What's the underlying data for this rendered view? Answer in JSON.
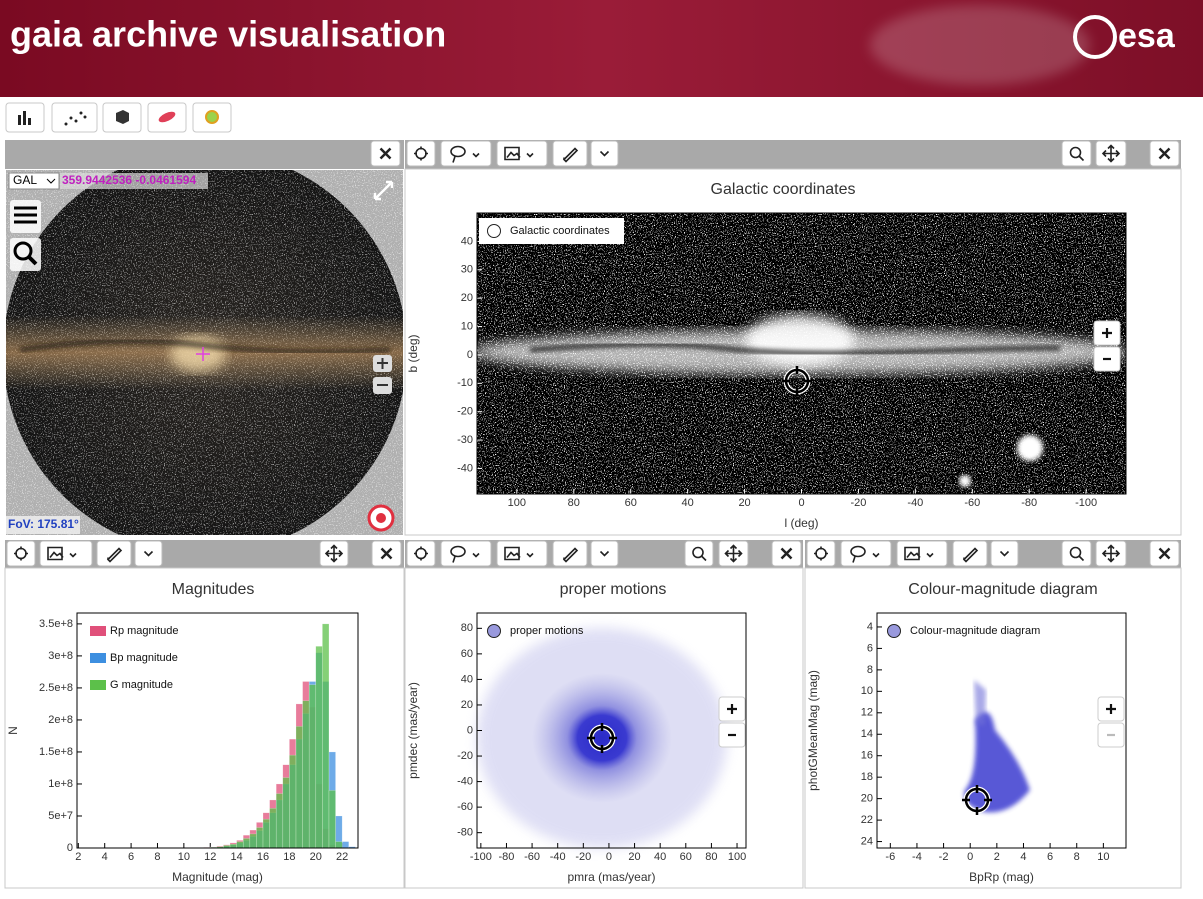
{
  "header": {
    "title": "gaia archive visualisation",
    "logo": "esa"
  },
  "sky_view": {
    "frame": "GAL",
    "coordinates": "359.9442536 -0.0461594",
    "fov": "FoV: 175.81°"
  },
  "chart_data": [
    {
      "type": "scatter",
      "title": "Galactic coordinates",
      "xlabel": "l (deg)",
      "ylabel": "b (deg)",
      "xlim": [
        114,
        -114
      ],
      "ylim": [
        -49,
        50
      ],
      "xticks": [
        100,
        80,
        60,
        40,
        20,
        0,
        -20,
        -40,
        -60,
        -80,
        -100
      ],
      "yticks": [
        40,
        30,
        20,
        10,
        0,
        -10,
        -20,
        -30,
        -40
      ],
      "series": [
        {
          "name": "Galactic coordinates",
          "color": "#ffffff"
        }
      ],
      "legend": "upper left"
    },
    {
      "type": "histogram",
      "title": "Magnitudes",
      "xlabel": "Magnitude (mag)",
      "ylabel": "N",
      "xlim": [
        1.9,
        23.2
      ],
      "ylim": [
        0,
        367000000
      ],
      "xticks": [
        2,
        4,
        6,
        8,
        10,
        12,
        14,
        16,
        18,
        20,
        22
      ],
      "yticks": [
        0,
        {
          "value": 50000000,
          "label": "5e+7"
        },
        {
          "value": 100000000,
          "label": "1e+8"
        },
        {
          "value": 150000000,
          "label": "1.5e+8"
        },
        {
          "value": 200000000,
          "label": "2e+8"
        },
        {
          "value": 250000000,
          "label": "2.5e+8"
        },
        {
          "value": 300000000,
          "label": "3e+8"
        },
        {
          "value": 350000000,
          "label": "3.5e+8"
        }
      ],
      "bins": [
        10,
        10.5,
        11,
        11.5,
        12,
        12.5,
        13,
        13.5,
        14,
        14.5,
        15,
        15.5,
        16,
        16.5,
        17,
        17.5,
        18,
        18.5,
        19,
        19.5,
        20,
        20.5,
        21,
        21.5,
        22,
        22.5,
        23
      ],
      "series": [
        {
          "name": "Rp magnitude",
          "color": "#e0507a",
          "values": [
            0,
            0,
            500000,
            1000000,
            1500000,
            3000000,
            5000000,
            8000000,
            12000000,
            20000000,
            28000000,
            40000000,
            55000000,
            75000000,
            100000000,
            130000000,
            170000000,
            225000000,
            260000000,
            220000000,
            100000000,
            30000000,
            5000000,
            0,
            0,
            0
          ]
        },
        {
          "name": "Bp magnitude",
          "color": "#3d8fe0",
          "values": [
            0,
            0,
            0,
            500000,
            1000000,
            1500000,
            3000000,
            5000000,
            8000000,
            12000000,
            18000000,
            27000000,
            40000000,
            55000000,
            75000000,
            100000000,
            130000000,
            170000000,
            210000000,
            260000000,
            305000000,
            260000000,
            150000000,
            50000000,
            10000000,
            2000000
          ]
        },
        {
          "name": "G magnitude",
          "color": "#5cc04a",
          "values": [
            0,
            0,
            500000,
            800000,
            1200000,
            2000000,
            4000000,
            6000000,
            10000000,
            15000000,
            22000000,
            32000000,
            45000000,
            62000000,
            85000000,
            110000000,
            145000000,
            190000000,
            230000000,
            255000000,
            315000000,
            350000000,
            90000000,
            10000000,
            0,
            0
          ]
        }
      ],
      "legend": "upper left"
    },
    {
      "type": "scatter",
      "title": "proper motions",
      "xlabel": "pmra (mas/year)",
      "ylabel": "pmdec (mas/year)",
      "xlim": [
        -103,
        107
      ],
      "ylim": [
        -92,
        92
      ],
      "xticks": [
        -100,
        -80,
        -60,
        -40,
        -20,
        0,
        20,
        40,
        60,
        80,
        100
      ],
      "yticks": [
        80,
        60,
        40,
        20,
        0,
        -20,
        -40,
        -60,
        -80
      ],
      "series": [
        {
          "name": "proper motions",
          "color": "#9999dd"
        }
      ],
      "legend": "upper left"
    },
    {
      "type": "scatter",
      "title": "Colour-magnitude diagram",
      "xlabel": "BpRp (mag)",
      "ylabel": "photGMeanMag (mag)",
      "xlim": [
        -7,
        11.7
      ],
      "ylim": [
        24.6,
        2.7
      ],
      "xticks": [
        -6,
        -4,
        -2,
        0,
        2,
        4,
        6,
        8,
        10
      ],
      "yticks": [
        4,
        6,
        8,
        10,
        12,
        14,
        16,
        18,
        20,
        22,
        24
      ],
      "series": [
        {
          "name": "Colour-magnitude diagram",
          "color": "#9999dd"
        }
      ],
      "legend": "upper left"
    }
  ]
}
